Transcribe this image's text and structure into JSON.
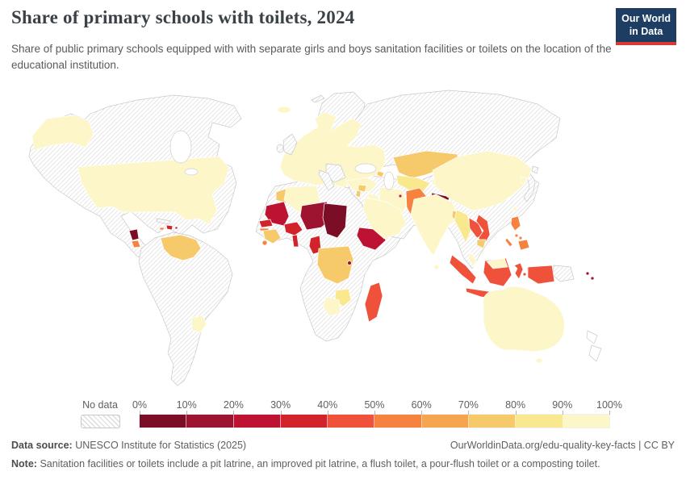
{
  "header": {
    "title": "Share of primary schools with toilets, 2024",
    "subtitle": "Share of public primary schools equipped with with separate girls and boys sanitation facilities or toilets on the location of the educational institution.",
    "logo": {
      "line1": "Our World",
      "line2": "in Data",
      "bg": "#1d3d63",
      "accent": "#d93a34"
    }
  },
  "legend": {
    "no_data_label": "No data",
    "tick_labels": [
      "0%",
      "10%",
      "20%",
      "30%",
      "40%",
      "50%",
      "60%",
      "70%",
      "80%",
      "90%",
      "100%"
    ],
    "colors": [
      "#7b0d26",
      "#9e1430",
      "#bd1231",
      "#d2222a",
      "#ef513b",
      "#f5823f",
      "#f4a54e",
      "#f6ca6b",
      "#fae88f",
      "#fdf6c8"
    ]
  },
  "footer": {
    "data_source_label": "Data source:",
    "data_source": "UNESCO Institute for Statistics (2025)",
    "link": "OurWorldinData.org/edu-quality-key-facts | CC BY",
    "note_label": "Note:",
    "note": "Sanitation facilities or toilets include a pit latrine, an improved pit latrine, a flush toilet, a pour-flush toilet or a composting toilet."
  },
  "chart_data": {
    "type": "choropleth-map",
    "title": "Share of primary schools with toilets, 2024",
    "unit": "%",
    "color_scale": {
      "buckets": [
        "0-10%",
        "10-20%",
        "20-30%",
        "30-40%",
        "40-50%",
        "50-60%",
        "60-70%",
        "70-80%",
        "80-90%",
        "90-100%"
      ],
      "colors": [
        "#7b0d26",
        "#9e1430",
        "#bd1231",
        "#d2222a",
        "#ef513b",
        "#f5823f",
        "#f4a54e",
        "#f6ca6b",
        "#fae88f",
        "#fdf6c8"
      ],
      "no_data_pattern": "gray-diagonal-hatch"
    },
    "regions": [
      {
        "name": "United States",
        "bucket": "90-100%"
      },
      {
        "name": "Uruguay",
        "bucket": "90-100%"
      },
      {
        "name": "Iceland",
        "bucket": "90-100%"
      },
      {
        "name": "Most of Europe (Spain, France, Germany, Scandinavia, Poland, Ukraine)",
        "bucket": "90-100%"
      },
      {
        "name": "Algeria",
        "bucket": "90-100%"
      },
      {
        "name": "Turkey",
        "bucket": "90-100%"
      },
      {
        "name": "Iraq",
        "bucket": "90-100%"
      },
      {
        "name": "Iran",
        "bucket": "90-100%"
      },
      {
        "name": "Saudi Arabia and Gulf peninsula",
        "bucket": "90-100%"
      },
      {
        "name": "India",
        "bucket": "90-100%"
      },
      {
        "name": "China",
        "bucket": "90-100%"
      },
      {
        "name": "South Korea",
        "bucket": "90-100%"
      },
      {
        "name": "Sri Lanka",
        "bucket": "90-100%"
      },
      {
        "name": "Malaysia",
        "bucket": "90-100%"
      },
      {
        "name": "Botswana",
        "bucket": "90-100%"
      },
      {
        "name": "Australia",
        "bucket": "90-100%"
      },
      {
        "name": "Uzbekistan",
        "bucket": "80-90%"
      },
      {
        "name": "Myanmar",
        "bucket": "80-90%"
      },
      {
        "name": "Zimbabwe",
        "bucket": "80-90%"
      },
      {
        "name": "Venezuela",
        "bucket": "70-80%"
      },
      {
        "name": "Morocco",
        "bucket": "70-80%"
      },
      {
        "name": "Guinea",
        "bucket": "70-80%"
      },
      {
        "name": "Democratic Republic of Congo",
        "bucket": "70-80%"
      },
      {
        "name": "Kazakhstan",
        "bucket": "70-80%"
      },
      {
        "name": "Bangladesh",
        "bucket": "70-80%"
      },
      {
        "name": "Cambodia",
        "bucket": "70-80%"
      },
      {
        "name": "Syria",
        "bucket": "70-80%"
      },
      {
        "name": "Azerbaijan",
        "bucket": "70-80%"
      },
      {
        "name": "Costa Rica",
        "bucket": "50-60%"
      },
      {
        "name": "Gambia",
        "bucket": "50-60%"
      },
      {
        "name": "Sierra Leone",
        "bucket": "50-60%"
      },
      {
        "name": "Pakistan",
        "bucket": "50-60%"
      },
      {
        "name": "Philippines",
        "bucket": "50-60%"
      },
      {
        "name": "Jamaica",
        "bucket": "50-60%"
      },
      {
        "name": "Madagascar",
        "bucket": "40-50%"
      },
      {
        "name": "Indonesia",
        "bucket": "40-50%"
      },
      {
        "name": "Laos",
        "bucket": "40-50%"
      },
      {
        "name": "Vietnam",
        "bucket": "40-50%"
      },
      {
        "name": "Senegal",
        "bucket": "30-40%"
      },
      {
        "name": "Burkina Faso",
        "bucket": "30-40%"
      },
      {
        "name": "Togo and Benin",
        "bucket": "30-40%"
      },
      {
        "name": "Cameroon",
        "bucket": "30-40%"
      },
      {
        "name": "Dominican Republic",
        "bucket": "30-40%"
      },
      {
        "name": "Kuwait",
        "bucket": "30-40%"
      },
      {
        "name": "Mauritania",
        "bucket": "20-30%"
      },
      {
        "name": "Ethiopia",
        "bucket": "20-30%"
      },
      {
        "name": "Niger",
        "bucket": "10-20%"
      },
      {
        "name": "Burundi",
        "bucket": "10-20%"
      },
      {
        "name": "Solomon Islands",
        "bucket": "10-20%"
      },
      {
        "name": "Chad",
        "bucket": "0-10%"
      },
      {
        "name": "Nicaragua",
        "bucket": "0-10%"
      },
      {
        "name": "Nepal",
        "bucket": "0-10%"
      }
    ],
    "no_data_regions": [
      "Canada",
      "Greenland",
      "Mexico",
      "Cuba",
      "Brazil and most of South America",
      "United Kingdom",
      "Ireland",
      "Italy",
      "Balkans",
      "Russia",
      "Mongolia",
      "Japan",
      "Libya",
      "Egypt",
      "Sudan",
      "Mali",
      "Nigeria",
      "Ghana",
      "Angola",
      "Zambia",
      "Mozambique",
      "South Africa",
      "Thailand",
      "Afghanistan",
      "Papua New Guinea",
      "New Zealand"
    ]
  },
  "map": {
    "fills": {
      "north-america": "nd",
      "greenland": "nd",
      "cuba": "nd",
      "south-america": "nd",
      "africa": "nd",
      "russia": "nd",
      "balkans": "nd",
      "uk": "nd",
      "ireland": "nd",
      "italy": "nd",
      "svalbard": "nd",
      "mideast": "nd",
      "asia": "nd",
      "japan-1": "nd",
      "japan-2": "nd",
      "png": "nd",
      "nz-1": "w",
      "nz-2": "w",
      "alaska": 9,
      "usa": 9,
      "nicaragua": 0,
      "costa-rica": 5,
      "jamaica": 5,
      "hispaniola": 3,
      "puerto-rico": 3,
      "venezuela": 7,
      "uruguay": 9,
      "iceland": 9,
      "europe": 9,
      "morocco": 7,
      "algeria": 9,
      "mauritania": 2,
      "senegal": 3,
      "gambia": 5,
      "guinea": 7,
      "sierra-leone": 5,
      "burkina-faso": 3,
      "togo-benin": 3,
      "niger": 1,
      "chad": 0,
      "cameroon": 3,
      "ethiopia": 2,
      "drc": 7,
      "burundi": 1,
      "madagascar": 4,
      "zimbabwe": 8,
      "botswana": 9,
      "turkey": 9,
      "syria": 7,
      "levant": 7,
      "azerbaijan": 7,
      "iraq": 9,
      "iran": 9,
      "arabia": 9,
      "kuwait": 3,
      "kazakhstan": 7,
      "uzbekistan": 8,
      "kyrgyzstan": 9,
      "pakistan": 5,
      "nepal": 0,
      "india": 9,
      "bangladesh": 7,
      "sri-lanka": 9,
      "china": 9,
      "south-korea": 9,
      "taiwan": 9,
      "myanmar": 8,
      "laos": 4,
      "vietnam": 4,
      "cambodia": 7,
      "malaysia": 9,
      "borneo-malaysia": 9,
      "sumatra": 4,
      "java": 4,
      "kalimantan": 4,
      "sulawesi": 4,
      "maluku-1": 4,
      "maluku-2": 4,
      "sunda-1": 4,
      "sunda-2": 4,
      "papua-id": 4,
      "luzon": 5,
      "visayas-1": 5,
      "visayas-2": 5,
      "mindanao": 5,
      "palawan": 5,
      "solomon-1": 1,
      "solomon-2": 1,
      "australia": 9,
      "tasmania": 9
    }
  }
}
